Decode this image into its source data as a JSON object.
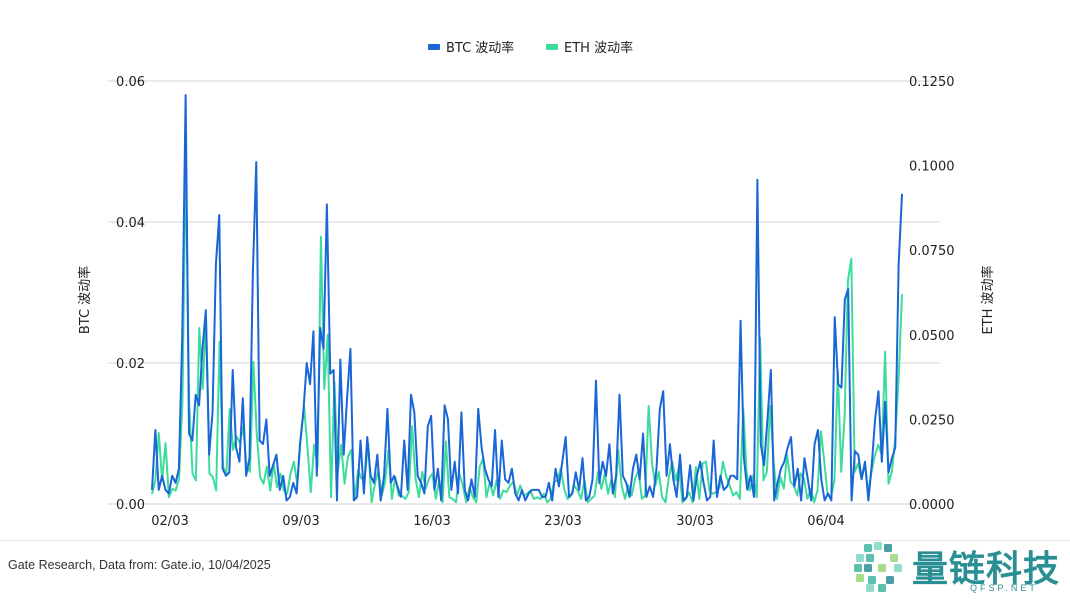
{
  "chart_data": {
    "type": "line",
    "legend": {
      "placement": "top-center"
    },
    "x_tick_labels": [
      "02/03",
      "09/03",
      "16/03",
      "23/03",
      "30/03",
      "06/04"
    ],
    "y_left": {
      "label": "BTC 波动率",
      "range": [
        0,
        0.06
      ],
      "ticks": [
        "0.00",
        "0.02",
        "0.04",
        "0.06"
      ]
    },
    "y_right": {
      "label": "ETH 波动率",
      "range": [
        0,
        0.125
      ],
      "ticks": [
        "0.0000",
        "0.0250",
        "0.0500",
        "0.0750",
        "0.1000",
        "0.1250"
      ]
    },
    "grid": true,
    "series": [
      {
        "name": "BTC 波动率",
        "axis": "left",
        "color": "#1a66d6",
        "values": [
          0.002,
          0.0105,
          0.002,
          0.004,
          0.002,
          0.0015,
          0.004,
          0.003,
          0.005,
          0.024,
          0.058,
          0.01,
          0.009,
          0.0155,
          0.014,
          0.022,
          0.0275,
          0.007,
          0.013,
          0.034,
          0.041,
          0.005,
          0.004,
          0.0045,
          0.019,
          0.008,
          0.006,
          0.015,
          0.004,
          0.0065,
          0.033,
          0.0485,
          0.009,
          0.0085,
          0.012,
          0.004,
          0.0055,
          0.007,
          0.002,
          0.004,
          0.0005,
          0.001,
          0.003,
          0.0015,
          0.0085,
          0.013,
          0.02,
          0.017,
          0.0245,
          0.004,
          0.025,
          0.022,
          0.0425,
          0.0185,
          0.019,
          0.0005,
          0.0205,
          0.007,
          0.015,
          0.022,
          0.0005,
          0.001,
          0.009,
          0.0015,
          0.0095,
          0.004,
          0.003,
          0.007,
          0.0005,
          0.004,
          0.0135,
          0.003,
          0.004,
          0.0025,
          0.001,
          0.009,
          0.002,
          0.0155,
          0.013,
          0.004,
          0.003,
          0.0015,
          0.011,
          0.0125,
          0.002,
          0.005,
          0.0005,
          0.014,
          0.012,
          0.002,
          0.006,
          0.0015,
          0.013,
          0.002,
          0.0005,
          0.0035,
          0.001,
          0.0135,
          0.008,
          0.005,
          0.0035,
          0.0025,
          0.0105,
          0.001,
          0.009,
          0.0035,
          0.003,
          0.005,
          0.0015,
          0.0005,
          0.002,
          0.0005,
          0.0015,
          0.002,
          0.002,
          0.002,
          0.001,
          0.001,
          0.003,
          0.0005,
          0.005,
          0.0025,
          0.006,
          0.0095,
          0.001,
          0.0015,
          0.0045,
          0.002,
          0.0065,
          0.0005,
          0.001,
          0.0035,
          0.0175,
          0.003,
          0.006,
          0.004,
          0.0085,
          0.0015,
          0.004,
          0.0155,
          0.004,
          0.003,
          0.001,
          0.005,
          0.007,
          0.0035,
          0.01,
          0.001,
          0.0025,
          0.001,
          0.005,
          0.0135,
          0.016,
          0.004,
          0.0085,
          0.0035,
          0.001,
          0.007,
          0.0005,
          0.001,
          0.0055,
          0.0005,
          0.004,
          0.006,
          0.003,
          0.0005,
          0.001,
          0.009,
          0.001,
          0.004,
          0.002,
          0.0025,
          0.004,
          0.004,
          0.0035,
          0.026,
          0.0065,
          0.002,
          0.004,
          0.001,
          0.046,
          0.0085,
          0.0055,
          0.012,
          0.019,
          0.0005,
          0.003,
          0.005,
          0.006,
          0.008,
          0.0095,
          0.0025,
          0.005,
          0.0005,
          0.0065,
          0.0035,
          0.0005,
          0.0085,
          0.0105,
          0.0035,
          0.0005,
          0.0015,
          0.0005,
          0.0265,
          0.017,
          0.0165,
          0.029,
          0.0305,
          0.0005,
          0.0075,
          0.007,
          0.0035,
          0.006,
          0.0005,
          0.0055,
          0.012,
          0.016,
          0.006,
          0.0145,
          0.0045,
          0.0065,
          0.008,
          0.034,
          0.044
        ]
      },
      {
        "name": "ETH 波动率",
        "axis": "right",
        "color": "#3ddb9c",
        "values": [
          0.003,
          0.007,
          0.021,
          0.007,
          0.018,
          0.002,
          0.0045,
          0.004,
          0.0075,
          0.03,
          0.103,
          0.03,
          0.009,
          0.007,
          0.052,
          0.034,
          0.055,
          0.009,
          0.008,
          0.004,
          0.048,
          0.011,
          0.009,
          0.028,
          0.016,
          0.02,
          0.018,
          0.023,
          0.011,
          0.0095,
          0.042,
          0.021,
          0.008,
          0.006,
          0.011,
          0.004,
          0.012,
          0.005,
          0.009,
          0.004,
          0.003,
          0.009,
          0.0125,
          0.006,
          0.019,
          0.029,
          0.017,
          0.0035,
          0.0175,
          0.011,
          0.079,
          0.034,
          0.05,
          0.002,
          0.036,
          0.0095,
          0.0175,
          0.006,
          0.014,
          0.016,
          0.0015,
          0.01,
          0.0075,
          0.008,
          0.018,
          0.0005,
          0.006,
          0.01,
          0.0025,
          0.0065,
          0.016,
          0.0015,
          0.008,
          0.0025,
          0.0025,
          0.0015,
          0.0035,
          0.023,
          0.0075,
          0.002,
          0.0095,
          0.0045,
          0.0075,
          0.009,
          0.0015,
          0.007,
          0.0005,
          0.0185,
          0.002,
          0.0015,
          0.0005,
          0.009,
          0.0055,
          0.0005,
          0.005,
          0.002,
          0.0005,
          0.011,
          0.0135,
          0.002,
          0.0065,
          0.0025,
          0.007,
          0.0015,
          0.004,
          0.0035,
          0.0055,
          0.0065,
          0.0025,
          0.0055,
          0.0025,
          0.003,
          0.004,
          0.0015,
          0.002,
          0.0015,
          0.003,
          0.0005,
          0.0015,
          0.0065,
          0.007,
          0.0105,
          0.0045,
          0.0015,
          0.0025,
          0.0055,
          0.004,
          0.0015,
          0.007,
          0.0005,
          0.0015,
          0.0025,
          0.0095,
          0.0045,
          0.009,
          0.003,
          0.0075,
          0.002,
          0.016,
          0.0055,
          0.0015,
          0.0055,
          0.0025,
          0.0075,
          0.01,
          0.0015,
          0.0025,
          0.029,
          0.012,
          0.0055,
          0.0095,
          0.002,
          0.0005,
          0.008,
          0.0125,
          0.007,
          0.011,
          0.0005,
          0.0015,
          0.0035,
          0.0005,
          0.011,
          0.0015,
          0.012,
          0.0125,
          0.004,
          0.003,
          0.0035,
          0.005,
          0.0125,
          0.008,
          0.0055,
          0.0025,
          0.0035,
          0.0015,
          0.0285,
          0.0095,
          0.004,
          0.0085,
          0.002,
          0.049,
          0.007,
          0.0095,
          0.029,
          0.0125,
          0.0015,
          0.008,
          0.0045,
          0.0145,
          0.0065,
          0.0055,
          0.0025,
          0.009,
          0.0075,
          0.0015,
          0.0045,
          0.0005,
          0.004,
          0.0215,
          0.0125,
          0.0025,
          0.002,
          0.007,
          0.0395,
          0.0095,
          0.0255,
          0.066,
          0.0725,
          0.0095,
          0.012,
          0.0075,
          0.012,
          0.0035,
          0.0095,
          0.0145,
          0.0175,
          0.0145,
          0.045,
          0.006,
          0.0095,
          0.0195,
          0.037,
          0.062
        ]
      }
    ]
  },
  "footer": {
    "source": "Gate Research, Data from: Gate.io, 10/04/2025",
    "watermark_text": "量链科技",
    "watermark_sub": "QFSP.NET"
  }
}
